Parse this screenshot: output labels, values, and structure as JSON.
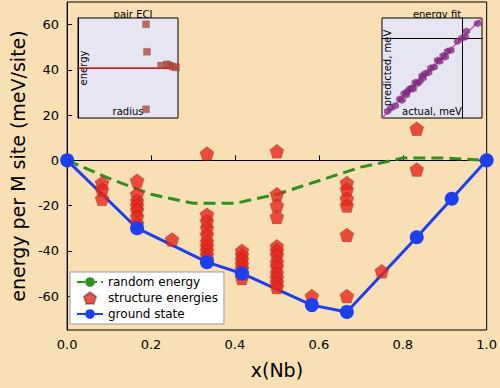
{
  "chart_data": [
    {
      "type": "line",
      "xlabel": "x(Nb)",
      "ylabel": "energy per M site (meV/site)",
      "xlim": [
        0,
        1
      ],
      "ylim": [
        -75,
        70
      ],
      "xticks": [
        {
          "value": 0,
          "label": "0.0"
        },
        {
          "value": 0.2,
          "label": "0.2"
        },
        {
          "value": 0.4,
          "label": "0.4"
        },
        {
          "value": 0.6,
          "label": "0.6"
        },
        {
          "value": 0.8,
          "label": "0.8"
        },
        {
          "value": 1,
          "label": "1.0"
        }
      ],
      "yticks": [
        -60,
        -40,
        -20,
        0,
        20,
        40,
        60
      ],
      "legend": "lower left",
      "series": [
        {
          "name": "random energy",
          "type": "line",
          "color": "#2f8f1f",
          "line_style": "dashed",
          "marker": "none",
          "x": [
            0,
            0.1,
            0.2,
            0.3,
            0.4,
            0.5,
            0.6,
            0.7,
            0.8,
            0.9,
            1.0
          ],
          "values": [
            0,
            -8,
            -15,
            -19,
            -19,
            -15,
            -9,
            -3,
            1,
            1,
            0
          ]
        },
        {
          "name": "structure energies",
          "type": "scatter",
          "color": "#e8261c",
          "marker": "pentagon",
          "x": [
            0.0833,
            0.0833,
            0.0833,
            0.1667,
            0.1667,
            0.1667,
            0.1667,
            0.1667,
            0.1667,
            0.1667,
            0.25,
            0.3333,
            0.3333,
            0.3333,
            0.3333,
            0.3333,
            0.3333,
            0.3333,
            0.3333,
            0.3333,
            0.3333,
            0.4167,
            0.4167,
            0.4167,
            0.4167,
            0.4167,
            0.4167,
            0.4167,
            0.5,
            0.5,
            0.5,
            0.5,
            0.5,
            0.5,
            0.5,
            0.5,
            0.5,
            0.5,
            0.5,
            0.5,
            0.5,
            0.5833,
            0.6667,
            0.6667,
            0.6667,
            0.6667,
            0.6667,
            0.6667,
            0.75,
            0.8333,
            0.8333
          ],
          "values": [
            -10,
            -13,
            -17,
            -9,
            -15,
            -18,
            -20,
            -22,
            -25,
            -28,
            -35,
            3,
            -24,
            -27,
            -30,
            -33,
            -36,
            -38,
            -40,
            -42,
            -44,
            -40,
            -42,
            -44,
            -46,
            -48,
            -50,
            -52,
            4,
            -15,
            -20,
            -25,
            -38,
            -40,
            -42,
            -45,
            -47,
            -50,
            -52,
            -54,
            -56,
            -60,
            -10,
            -13,
            -17,
            -20,
            -33,
            -60,
            -49,
            14,
            -4
          ]
        },
        {
          "name": "ground state",
          "type": "line",
          "color": "#1c3ff2",
          "line_style": "solid",
          "marker": "circle",
          "x": [
            0,
            0.1667,
            0.3333,
            0.4167,
            0.5833,
            0.6667,
            0.8333,
            0.9167,
            1.0
          ],
          "values": [
            0,
            -30,
            -45,
            -50,
            -64,
            -67,
            -34,
            -17,
            0
          ]
        }
      ]
    },
    {
      "type": "scatter",
      "title": "pair ECI",
      "xlabel": "radius",
      "ylabel": "energy",
      "xlim": [
        0,
        10
      ],
      "ylim": [
        -4,
        4
      ],
      "tick_labels": false,
      "series": [
        {
          "type": "scatter",
          "color": "#b5483a",
          "marker": "square",
          "x": [
            6.8,
            6.9,
            6.8,
            8.3,
            8.9,
            9.2,
            9.5,
            9.8
          ],
          "values": [
            3.5,
            1.3,
            -3.3,
            0.2,
            0.3,
            0.2,
            0.1,
            0.05
          ]
        },
        {
          "type": "line",
          "color": "#e0302a",
          "line_style": "solid",
          "marker": "none",
          "x": [
            0,
            10
          ],
          "values": [
            0,
            0
          ]
        }
      ]
    },
    {
      "type": "scatter",
      "title": "energy fit",
      "xlabel": "actual, meV",
      "ylabel": "predicted, meV",
      "xlim": [
        -72,
        18
      ],
      "ylim": [
        -72,
        18
      ],
      "tick_labels": false,
      "series": [
        {
          "type": "line",
          "color": "#e040c8",
          "line_style": "solid",
          "marker": "none",
          "x": [
            -72,
            18
          ],
          "values": [
            -72,
            18
          ]
        },
        {
          "type": "scatter",
          "color": "#8b2a8b",
          "marker": "hexagon",
          "x": [
            -67,
            -64,
            -60,
            -56,
            -54,
            -52,
            -50,
            -49,
            -47,
            -45,
            -44,
            -42,
            -40,
            -38,
            -36,
            -35,
            -33,
            -30,
            -28,
            -25,
            -22,
            -20,
            -17,
            -15,
            -13,
            -10,
            -4,
            0,
            3,
            4,
            14
          ],
          "values": [
            -66,
            -63,
            -61,
            -55,
            -56,
            -50,
            -51,
            -48,
            -46,
            -45,
            -46,
            -40,
            -41,
            -39,
            -34,
            -36,
            -32,
            -31,
            -27,
            -26,
            -20,
            -21,
            -16,
            -17,
            -12,
            -11,
            -3,
            0,
            1,
            6,
            13
          ]
        }
      ]
    }
  ]
}
